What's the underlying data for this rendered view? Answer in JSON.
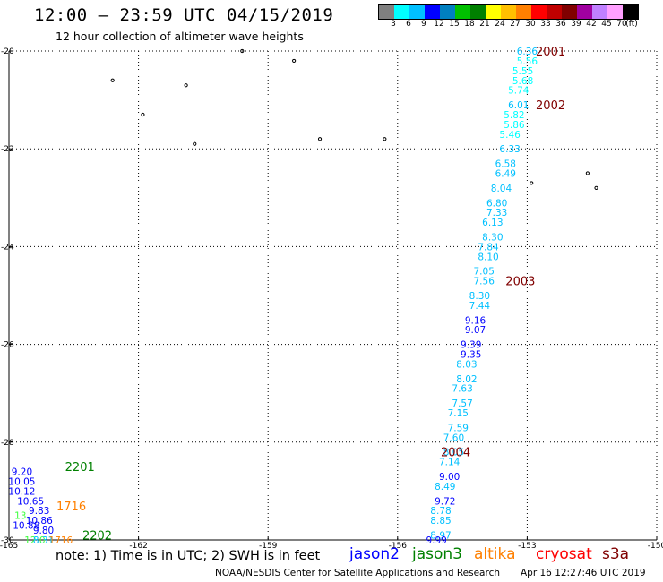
{
  "header": {
    "title": "12:00 — 23:59 UTC 04/15/2019",
    "subtitle": "12 hour collection of altimeter wave heights"
  },
  "legend": {
    "colors": [
      "#808080",
      "#00ffff",
      "#00c0ff",
      "#0000ff",
      "#0080c0",
      "#00c000",
      "#008000",
      "#ffff00",
      "#ffc000",
      "#ff8000",
      "#ff0000",
      "#c00000",
      "#800000",
      "#a000a0",
      "#c080ff",
      "#ffa0ff",
      "#000000"
    ],
    "tick_labels": [
      "3",
      "6",
      "9",
      "12",
      "15",
      "18",
      "21",
      "24",
      "27",
      "30",
      "33",
      "36",
      "39",
      "42",
      "45",
      "70",
      "(ft)"
    ]
  },
  "chart_data": {
    "type": "scatter",
    "xlim": [
      -165,
      -150
    ],
    "ylim": [
      -30,
      -20
    ],
    "x_ticks": [
      -165,
      -162,
      -159,
      -156,
      -153,
      -150
    ],
    "y_ticks": [
      -20,
      -22,
      -24,
      -26,
      -28,
      -30
    ],
    "x_tick_labels": [
      "-165",
      "-162",
      "-159",
      "-156",
      "-153",
      "-150"
    ],
    "y_tick_labels": [
      "-20",
      "-22",
      "-24",
      "-26",
      "-28",
      "-30"
    ],
    "grid": true,
    "track_labels": [
      {
        "text": "2001",
        "x": -152.8,
        "y": -20.0,
        "color": "#800000"
      },
      {
        "text": "2002",
        "x": -152.8,
        "y": -21.1,
        "color": "#800000"
      },
      {
        "text": "2003",
        "x": -153.5,
        "y": -24.7,
        "color": "#800000"
      },
      {
        "text": "2004",
        "x": -155.0,
        "y": -28.2,
        "color": "#800000"
      },
      {
        "text": "2201",
        "x": -163.7,
        "y": -28.5,
        "color": "#008000"
      },
      {
        "text": "1716",
        "x": -163.9,
        "y": -29.3,
        "color": "#ff8000"
      },
      {
        "text": "2202",
        "x": -163.3,
        "y": -29.9,
        "color": "#008000"
      }
    ],
    "series": [
      {
        "name": "",
        "points": [
          {
            "x": -153.0,
            "y": -20.0,
            "v": "6.36",
            "c": "#00c0ff"
          },
          {
            "x": -153.0,
            "y": -20.2,
            "v": "5.56",
            "c": "#00ffff"
          },
          {
            "x": -153.1,
            "y": -20.4,
            "v": "5.55",
            "c": "#00ffff"
          },
          {
            "x": -153.1,
            "y": -20.6,
            "v": "5.68",
            "c": "#00ffff"
          },
          {
            "x": -153.2,
            "y": -20.8,
            "v": "5.74",
            "c": "#00ffff"
          },
          {
            "x": -153.2,
            "y": -21.1,
            "v": "6.01",
            "c": "#00c0ff"
          },
          {
            "x": -153.3,
            "y": -21.3,
            "v": "5.82",
            "c": "#00ffff"
          },
          {
            "x": -153.3,
            "y": -21.5,
            "v": "5.86",
            "c": "#00ffff"
          },
          {
            "x": -153.4,
            "y": -21.7,
            "v": "5.46",
            "c": "#00ffff"
          },
          {
            "x": -153.4,
            "y": -22.0,
            "v": "6.33",
            "c": "#00c0ff"
          },
          {
            "x": -153.5,
            "y": -22.3,
            "v": "6.58",
            "c": "#00c0ff"
          },
          {
            "x": -153.5,
            "y": -22.5,
            "v": "6.49",
            "c": "#00c0ff"
          },
          {
            "x": -153.6,
            "y": -22.8,
            "v": "8.04",
            "c": "#00c0ff"
          },
          {
            "x": -153.7,
            "y": -23.1,
            "v": "6.80",
            "c": "#00c0ff"
          },
          {
            "x": -153.7,
            "y": -23.3,
            "v": "7.33",
            "c": "#00c0ff"
          },
          {
            "x": -153.8,
            "y": -23.5,
            "v": "6.13",
            "c": "#00c0ff"
          },
          {
            "x": -153.8,
            "y": -23.8,
            "v": "8.30",
            "c": "#00c0ff"
          },
          {
            "x": -153.9,
            "y": -24.0,
            "v": "7.84",
            "c": "#00c0ff"
          },
          {
            "x": -153.9,
            "y": -24.2,
            "v": "8.10",
            "c": "#00c0ff"
          },
          {
            "x": -154.0,
            "y": -24.5,
            "v": "7.05",
            "c": "#00c0ff"
          },
          {
            "x": -154.0,
            "y": -24.7,
            "v": "7.56",
            "c": "#00c0ff"
          },
          {
            "x": -154.1,
            "y": -25.0,
            "v": "8.30",
            "c": "#00c0ff"
          },
          {
            "x": -154.1,
            "y": -25.2,
            "v": "7.44",
            "c": "#00c0ff"
          },
          {
            "x": -154.2,
            "y": -25.5,
            "v": "9.16",
            "c": "#0000ff"
          },
          {
            "x": -154.2,
            "y": -25.7,
            "v": "9.07",
            "c": "#0000ff"
          },
          {
            "x": -154.3,
            "y": -26.0,
            "v": "9.39",
            "c": "#0000ff"
          },
          {
            "x": -154.3,
            "y": -26.2,
            "v": "9.35",
            "c": "#0000ff"
          },
          {
            "x": -154.4,
            "y": -26.4,
            "v": "8.03",
            "c": "#00c0ff"
          },
          {
            "x": -154.4,
            "y": -26.7,
            "v": "8.02",
            "c": "#00c0ff"
          },
          {
            "x": -154.5,
            "y": -26.9,
            "v": "7.63",
            "c": "#00c0ff"
          },
          {
            "x": -154.5,
            "y": -27.2,
            "v": "7.57",
            "c": "#00c0ff"
          },
          {
            "x": -154.6,
            "y": -27.4,
            "v": "7.15",
            "c": "#00c0ff"
          },
          {
            "x": -154.6,
            "y": -27.7,
            "v": "7.59",
            "c": "#00c0ff"
          },
          {
            "x": -154.7,
            "y": -27.9,
            "v": "7.60",
            "c": "#00c0ff"
          },
          {
            "x": -154.7,
            "y": -28.2,
            "v": "8.05",
            "c": "#00c0ff"
          },
          {
            "x": -154.8,
            "y": -28.4,
            "v": "7.14",
            "c": "#00c0ff"
          },
          {
            "x": -154.8,
            "y": -28.7,
            "v": "9.00",
            "c": "#0000ff"
          },
          {
            "x": -154.9,
            "y": -28.9,
            "v": "8.49",
            "c": "#00c0ff"
          },
          {
            "x": -154.9,
            "y": -29.2,
            "v": "9.72",
            "c": "#0000ff"
          },
          {
            "x": -155.0,
            "y": -29.4,
            "v": "8.78",
            "c": "#00c0ff"
          },
          {
            "x": -155.0,
            "y": -29.6,
            "v": "8.85",
            "c": "#00c0ff"
          },
          {
            "x": -155.0,
            "y": -29.9,
            "v": "8.97",
            "c": "#00c0ff"
          },
          {
            "x": -155.1,
            "y": -30.0,
            "v": "9.99",
            "c": "#0000ff"
          },
          {
            "x": -164.7,
            "y": -28.6,
            "v": "9.20",
            "c": "#0000ff"
          },
          {
            "x": -164.7,
            "y": -28.8,
            "v": "10.05",
            "c": "#0000ff"
          },
          {
            "x": -164.7,
            "y": -29.0,
            "v": "10.12",
            "c": "#0000ff"
          },
          {
            "x": -164.5,
            "y": -29.2,
            "v": "10.65",
            "c": "#0000ff"
          },
          {
            "x": -164.3,
            "y": -29.4,
            "v": "9.83",
            "c": "#0000ff"
          },
          {
            "x": -164.7,
            "y": -29.5,
            "v": "13.",
            "c": "#40ff40"
          },
          {
            "x": -164.3,
            "y": -29.6,
            "v": "10.86",
            "c": "#0000ff"
          },
          {
            "x": -164.6,
            "y": -29.7,
            "v": "10.88",
            "c": "#0000ff"
          },
          {
            "x": -164.2,
            "y": -29.8,
            "v": "9.80",
            "c": "#0000ff"
          },
          {
            "x": -164.4,
            "y": -30.0,
            "v": "12.0",
            "c": "#40ff40"
          },
          {
            "x": -164.2,
            "y": -30.0,
            "v": "8.31",
            "c": "#00c0ff"
          },
          {
            "x": -163.8,
            "y": -30.0,
            "v": "1716",
            "c": "#ff8000"
          }
        ]
      }
    ],
    "islands": [
      {
        "x": -160.9,
        "y": -20.7
      },
      {
        "x": -159.6,
        "y": -20.0
      },
      {
        "x": -158.4,
        "y": -20.2
      },
      {
        "x": -162.6,
        "y": -20.6
      },
      {
        "x": -161.9,
        "y": -21.3
      },
      {
        "x": -160.7,
        "y": -21.9
      },
      {
        "x": -157.8,
        "y": -21.8
      },
      {
        "x": -156.3,
        "y": -21.8
      },
      {
        "x": -152.9,
        "y": -22.7
      },
      {
        "x": -151.6,
        "y": -22.5
      },
      {
        "x": -151.4,
        "y": -22.8
      }
    ]
  },
  "footer": {
    "note": "note: 1) Time is in UTC; 2) SWH is in feet",
    "satellites": [
      {
        "name": "jason2",
        "color": "#0000ff"
      },
      {
        "name": "jason3",
        "color": "#008000"
      },
      {
        "name": "altika",
        "color": "#ff8000"
      },
      {
        "name": "cryosat",
        "color": "#ff0000"
      },
      {
        "name": "s3a",
        "color": "#800000"
      }
    ],
    "credit": "NOAA/NESDIS Center for Satellite Applications and Research",
    "timestamp": "Apr 16 12:27:46 UTC 2019"
  }
}
